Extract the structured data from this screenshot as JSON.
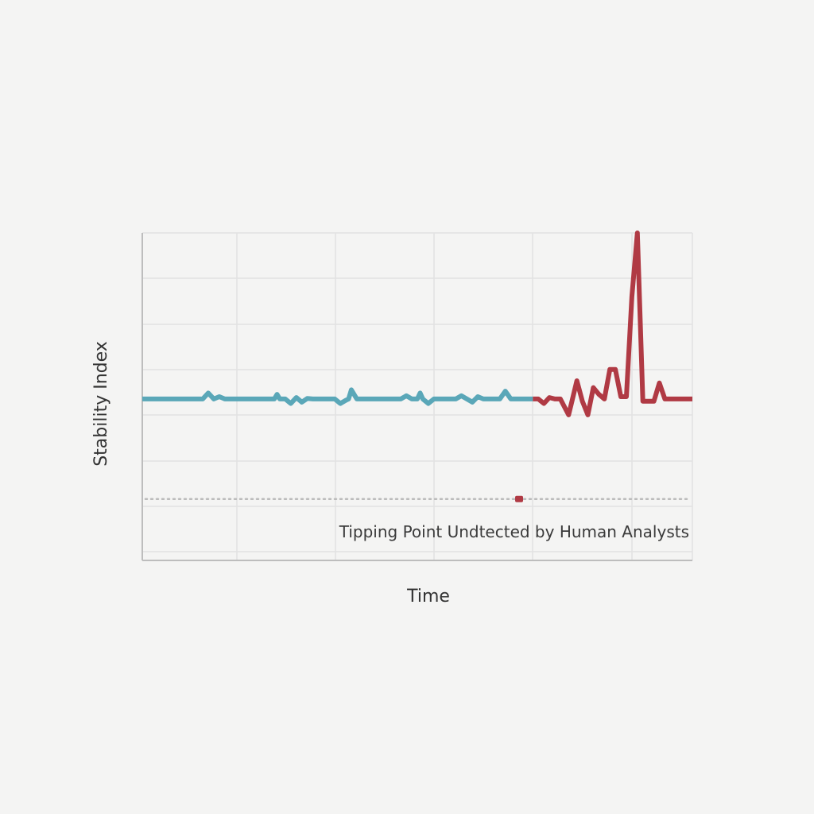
{
  "chart_data": {
    "type": "line",
    "xlabel": "Time",
    "ylabel": "Stability Index",
    "title": "",
    "grid": true,
    "tick_labels_shown": false,
    "xlim": [
      0,
      100
    ],
    "ylim": [
      0,
      7.2
    ],
    "series": [
      {
        "color": "#5aa7b8",
        "x": [
          0,
          11,
          12,
          13,
          14,
          15,
          16,
          17,
          24,
          24.5,
          25,
          26,
          27,
          28,
          29,
          30,
          31,
          32,
          35,
          36,
          37,
          37.5,
          38,
          39,
          40,
          45,
          47,
          48,
          49,
          50,
          50.5,
          51,
          52,
          53,
          54,
          55,
          56,
          57,
          58,
          59,
          60,
          61,
          62,
          63,
          64,
          65,
          66,
          67,
          68,
          69,
          70,
          71
        ],
        "y": [
          3.55,
          3.55,
          3.68,
          3.55,
          3.6,
          3.55,
          3.55,
          3.55,
          3.55,
          3.65,
          3.55,
          3.55,
          3.45,
          3.58,
          3.48,
          3.56,
          3.55,
          3.55,
          3.55,
          3.45,
          3.52,
          3.55,
          3.75,
          3.55,
          3.55,
          3.55,
          3.55,
          3.62,
          3.55,
          3.55,
          3.68,
          3.55,
          3.45,
          3.55,
          3.55,
          3.55,
          3.55,
          3.55,
          3.62,
          3.55,
          3.48,
          3.6,
          3.55,
          3.55,
          3.55,
          3.55,
          3.72,
          3.55,
          3.55,
          3.55,
          3.55,
          3.55
        ]
      },
      {
        "color": "#b03a44",
        "x": [
          71,
          72,
          73,
          74,
          75,
          76,
          77.5,
          78,
          79,
          80,
          81,
          82,
          83,
          84,
          85,
          86,
          87,
          88,
          89,
          90,
          91,
          92,
          93,
          94,
          95,
          96,
          97,
          98,
          100
        ],
        "y": [
          3.55,
          3.55,
          3.45,
          3.58,
          3.55,
          3.55,
          3.2,
          3.45,
          3.95,
          3.5,
          3.2,
          3.8,
          3.65,
          3.55,
          4.2,
          4.2,
          3.6,
          3.6,
          5.8,
          7.2,
          3.5,
          3.5,
          3.5,
          3.9,
          3.55,
          3.55,
          3.55,
          3.55,
          3.55
        ]
      }
    ],
    "annotations": [
      {
        "text": "Tipping Point Undtected by Human Analysts",
        "threshold_y": 1.35,
        "marker_x": 68.5,
        "marker_color": "#b03a44",
        "line_color": "#bbbbbb"
      }
    ]
  }
}
